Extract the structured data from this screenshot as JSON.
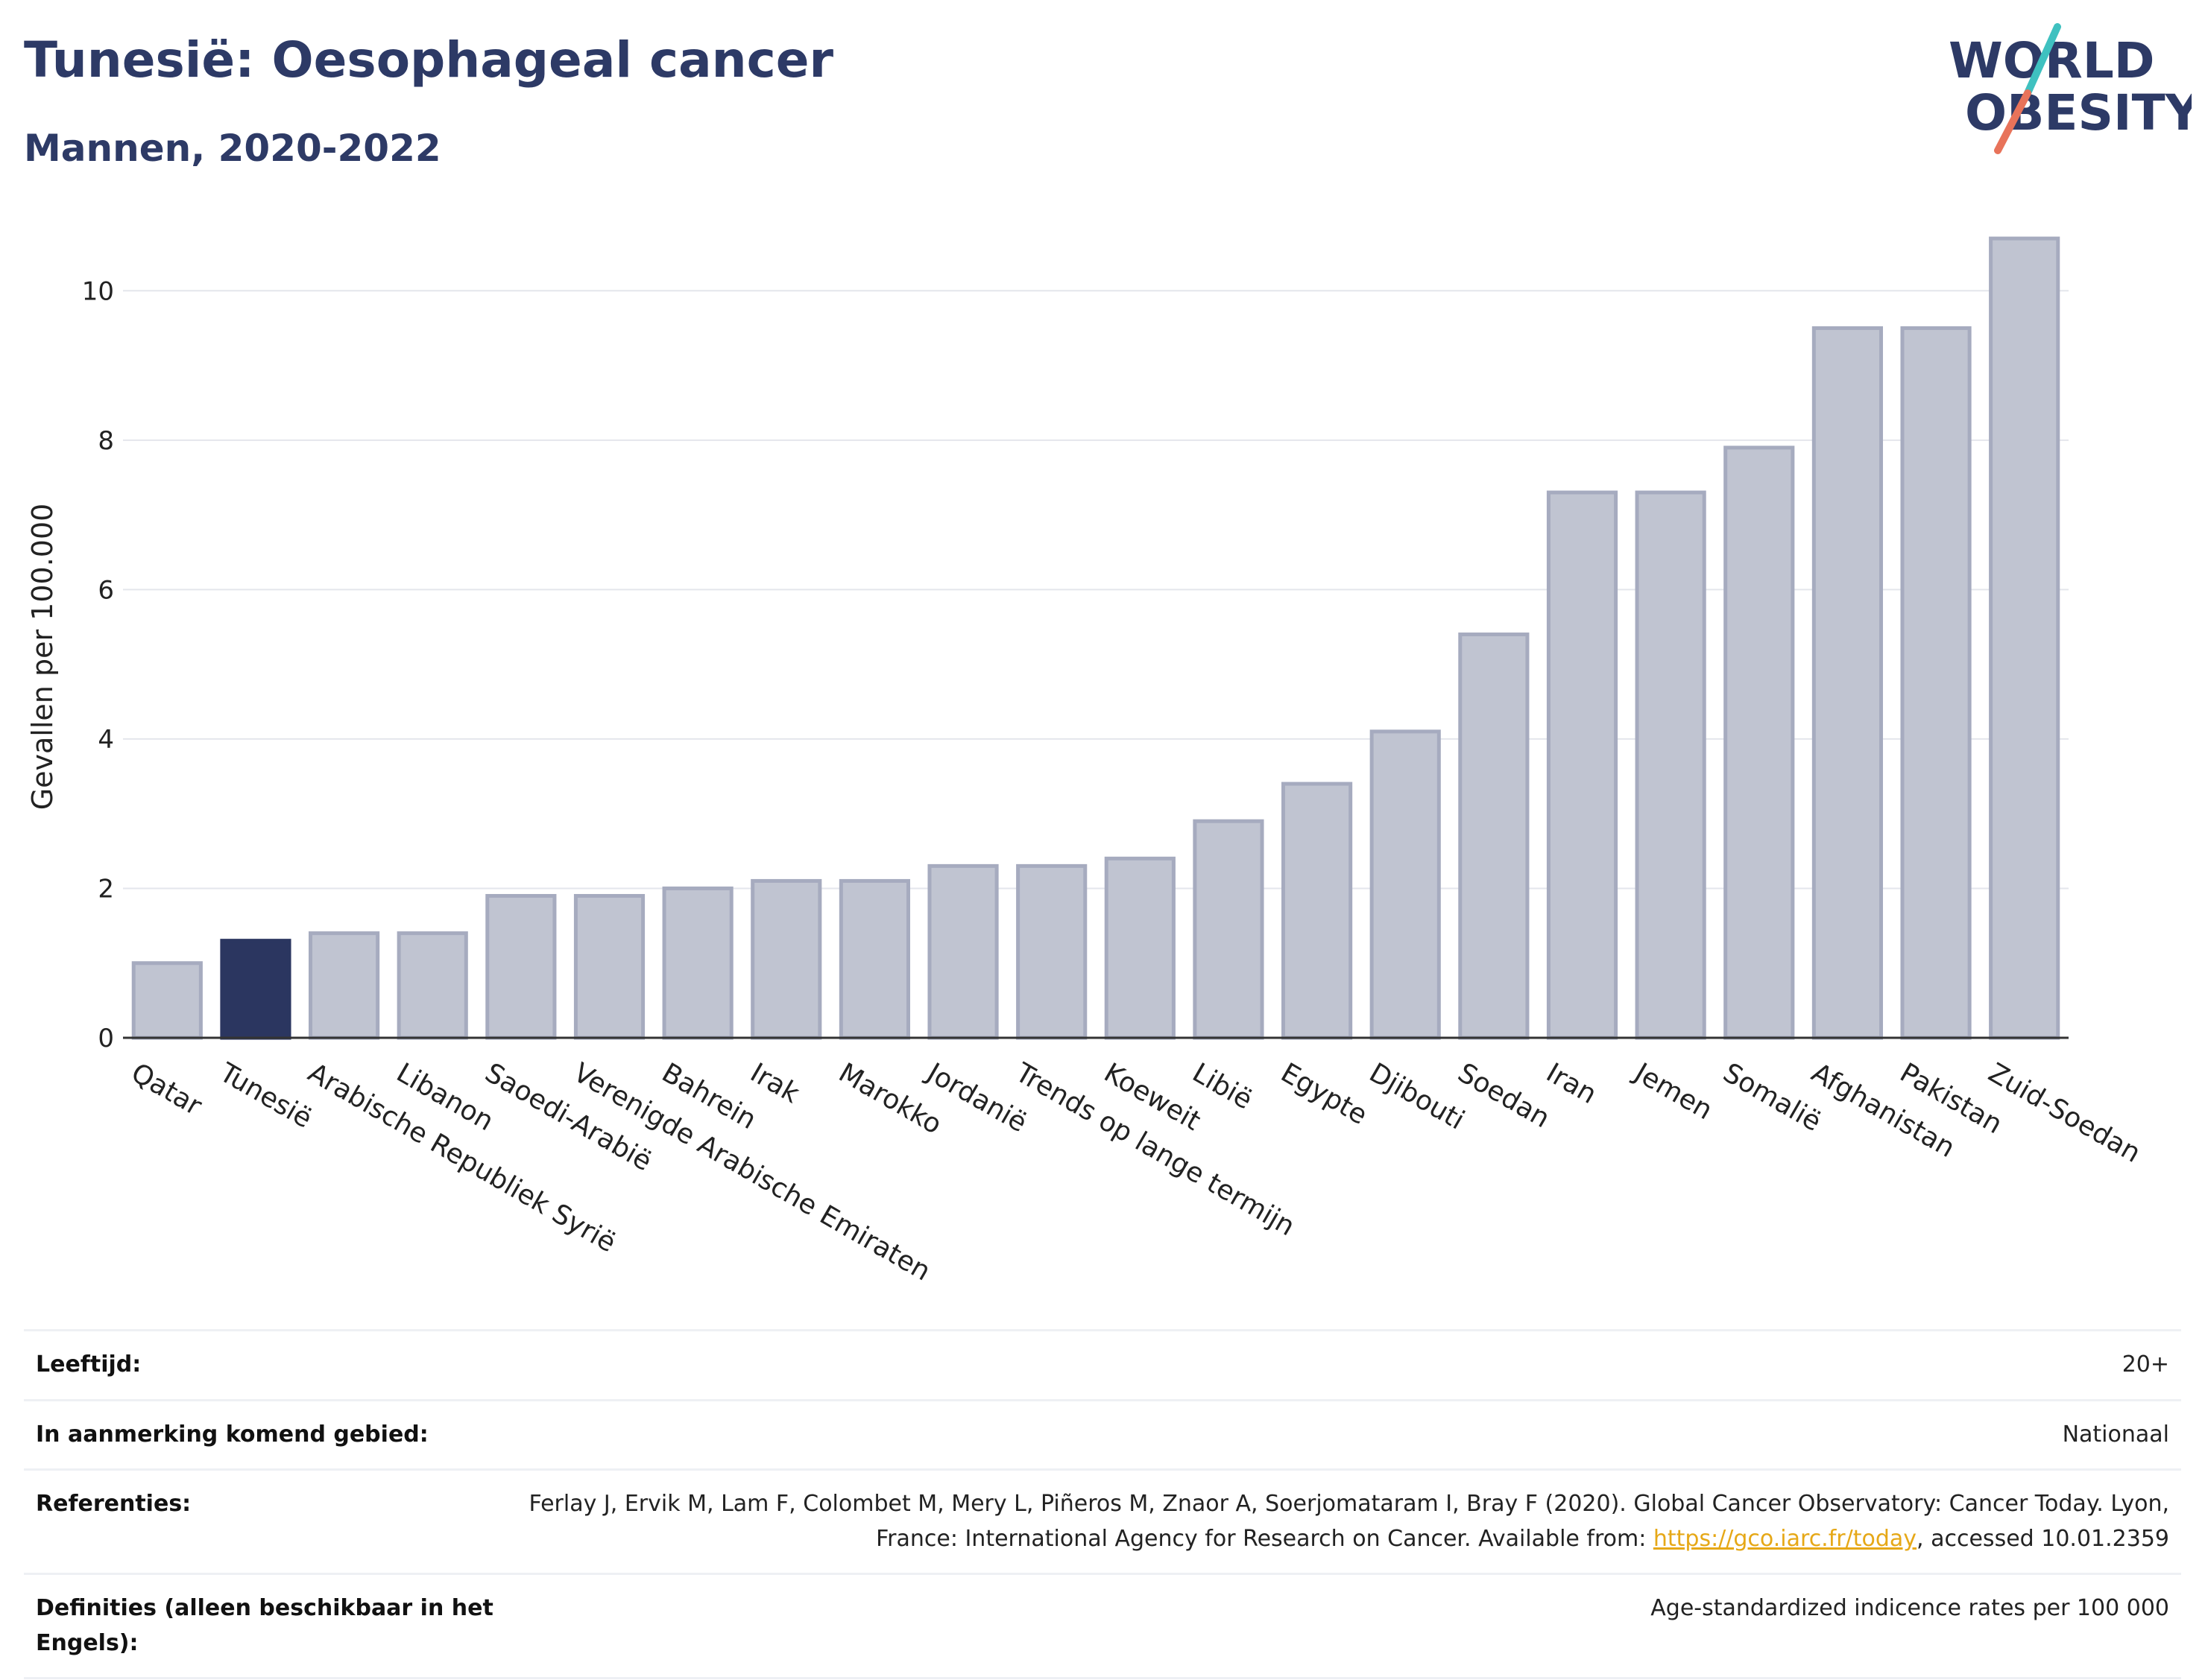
{
  "header": {
    "title": "Tunesië: Oesophageal cancer",
    "subtitle": "Mannen, 2020-2022"
  },
  "logo": {
    "line1": "WORLD",
    "line2": "OBESITY",
    "colors": {
      "text": "#2d3a66",
      "slash_top": "#3fc1c0",
      "slash_bottom": "#e8735a"
    }
  },
  "chart_data": {
    "type": "bar",
    "title": "",
    "xlabel": "",
    "ylabel": "Gevallen per 100.000",
    "ylim": [
      0,
      11
    ],
    "yticks": [
      0,
      2,
      4,
      6,
      8,
      10
    ],
    "grid": true,
    "highlight": "Tunesië",
    "colors": {
      "bar": "#c0c4d1",
      "bar_edge": "#a6abbf",
      "highlight": "#2b3660",
      "axis": "#333333",
      "grid": "#e4e6ec"
    },
    "categories": [
      "Qatar",
      "Tunesië",
      "Arabische Republiek Syrië",
      "Libanon",
      "Saoedi-Arabië",
      "Verenigde Arabische Emiraten",
      "Bahrein",
      "Irak",
      "Marokko",
      "Jordanië",
      "Trends op lange termijn",
      "Koeweit",
      "Libië",
      "Egypte",
      "Djibouti",
      "Soedan",
      "Iran",
      "Jemen",
      "Somalië",
      "Afghanistan",
      "Pakistan",
      "Zuid-Soedan"
    ],
    "values": [
      1.0,
      1.3,
      1.4,
      1.4,
      1.9,
      1.9,
      2.0,
      2.1,
      2.1,
      2.3,
      2.3,
      2.4,
      2.9,
      3.4,
      4.1,
      5.4,
      7.3,
      7.3,
      7.9,
      9.5,
      9.5,
      10.7
    ]
  },
  "info": {
    "rows": [
      {
        "label": "Leeftijd:",
        "value": "20+"
      },
      {
        "label": "In aanmerking komend gebied:",
        "value": "Nationaal"
      },
      {
        "label": "Referenties:",
        "value": "Ferlay J, Ervik M, Lam F, Colombet M, Mery L, Piñeros M, Znaor A, Soerjomataram I, Bray F (2020). Global Cancer Observatory: Cancer Today. Lyon, France: International Agency for Research on Cancer. Available from: ",
        "link": "https://gco.iarc.fr/today",
        "value_suffix": ", accessed 10.01.2359"
      },
      {
        "label": "Definities (alleen beschikbaar in het Engels):",
        "value": "Age-standardized indicence rates per 100 000"
      }
    ]
  }
}
